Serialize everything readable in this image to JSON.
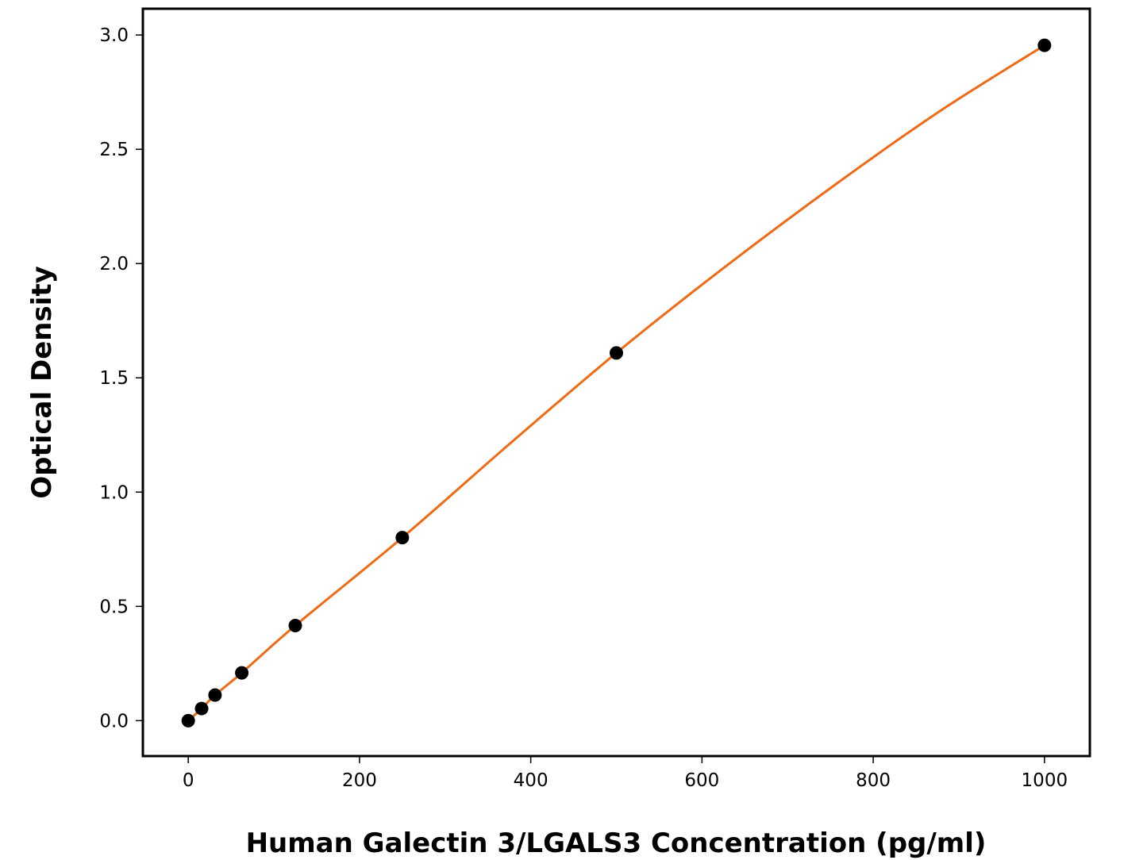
{
  "chart_data": {
    "type": "scatter",
    "title": "",
    "xlabel": "Human Galectin 3/LGALS3 Concentration (pg/ml)",
    "ylabel": "Optical Density",
    "xlim": [
      -53,
      1053
    ],
    "ylim": [
      -0.155,
      3.115
    ],
    "x_ticks": [
      0,
      200,
      400,
      600,
      800,
      1000
    ],
    "x_tick_labels": [
      "0",
      "200",
      "400",
      "600",
      "800",
      "1000"
    ],
    "y_ticks": [
      0.0,
      0.5,
      1.0,
      1.5,
      2.0,
      2.5,
      3.0
    ],
    "y_tick_labels": [
      "0.0",
      "0.5",
      "1.0",
      "1.5",
      "2.0",
      "2.5",
      "3.0"
    ],
    "grid": false,
    "legend": "none",
    "series": [
      {
        "kind": "points",
        "color": "#000000",
        "x": [
          0,
          15.6,
          31.25,
          62.5,
          125,
          250,
          500,
          1000
        ],
        "y": [
          0.0,
          0.053,
          0.112,
          0.209,
          0.416,
          0.801,
          1.609,
          2.955
        ]
      },
      {
        "kind": "fit-curve",
        "color": "#EE6A15",
        "x": [
          0,
          15.6,
          31.25,
          62.5,
          125,
          250,
          375,
          500,
          625,
          750,
          875,
          1000
        ],
        "y": [
          0.0,
          0.053,
          0.112,
          0.209,
          0.416,
          0.801,
          1.21,
          1.609,
          1.98,
          2.33,
          2.66,
          2.955
        ]
      }
    ]
  }
}
